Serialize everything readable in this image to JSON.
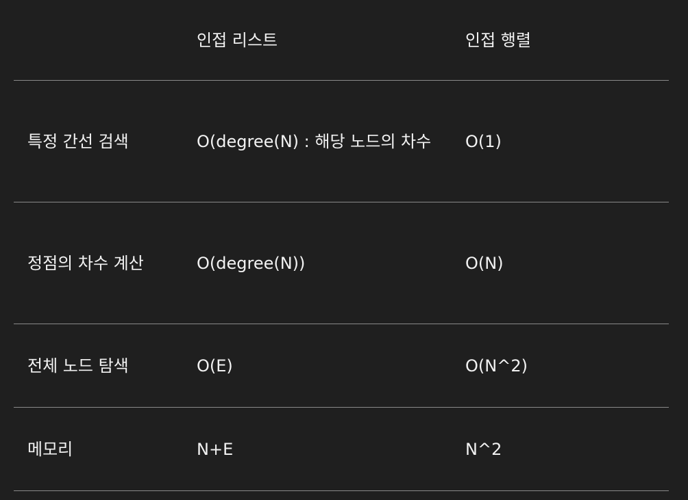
{
  "table": {
    "headers": [
      "",
      "인접 리스트",
      "인접 행렬"
    ],
    "rows": [
      {
        "label": "특정 간선 검색",
        "list": "O(degree(N) : 해당 노드의 차수",
        "matrix": "O(1)"
      },
      {
        "label": "정점의 차수 계산",
        "list": "O(degree(N))",
        "matrix": "O(N)"
      },
      {
        "label": "전체 노드 탐색",
        "list": "O(E)",
        "matrix": "O(N^2)"
      },
      {
        "label": "메모리",
        "list": "N+E",
        "matrix": "N^2"
      }
    ]
  }
}
